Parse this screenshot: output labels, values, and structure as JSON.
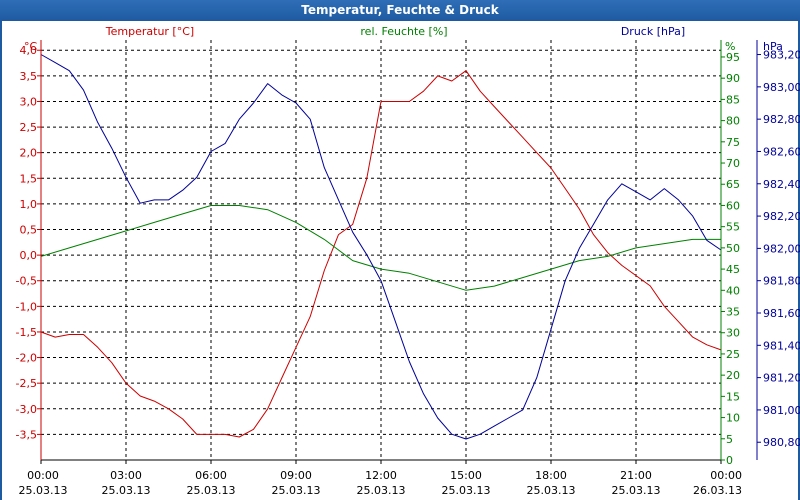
{
  "window": {
    "title": "Temperatur, Feuchte & Druck"
  },
  "colors": {
    "titlebar": "#1d5aa0",
    "temperature": "#cc0000",
    "humidity": "#008000",
    "pressure": "#000099"
  },
  "chart_data": {
    "type": "line",
    "title": "Temperatur, Feuchte & Druck",
    "grid": true,
    "x_axis": {
      "range": [
        "25.03.13 00:00",
        "26.03.13 00:00"
      ],
      "ticks": [
        {
          "h": 0,
          "time": "00:00",
          "date": "25.03.13"
        },
        {
          "h": 3,
          "time": "03:00",
          "date": "25.03.13"
        },
        {
          "h": 6,
          "time": "06:00",
          "date": "25.03.13"
        },
        {
          "h": 9,
          "time": "09:00",
          "date": "25.03.13"
        },
        {
          "h": 12,
          "time": "12:00",
          "date": "25.03.13"
        },
        {
          "h": 15,
          "time": "15:00",
          "date": "25.03.13"
        },
        {
          "h": 18,
          "time": "18:00",
          "date": "25.03.13"
        },
        {
          "h": 21,
          "time": "21:00",
          "date": "25.03.13"
        },
        {
          "h": 24,
          "time": "00:00",
          "date": "26.03.13"
        }
      ]
    },
    "axes": {
      "temperature": {
        "label": "Temperatur [°C]",
        "unit": "°C",
        "range": [
          -4.0,
          4.2
        ],
        "ticks": [
          "4,0",
          "3,5",
          "3,0",
          "2,5",
          "2,0",
          "1,5",
          "1,0",
          "0,5",
          "0,0",
          "-0,5",
          "-1,0",
          "-1,5",
          "-2,0",
          "-2,5",
          "-3,0",
          "-3,5"
        ],
        "tick_values": [
          4.0,
          3.5,
          3.0,
          2.5,
          2.0,
          1.5,
          1.0,
          0.5,
          0.0,
          -0.5,
          -1.0,
          -1.5,
          -2.0,
          -2.5,
          -3.0,
          -3.5
        ]
      },
      "humidity": {
        "label": "rel. Feuchte [%]",
        "unit": "%",
        "range": [
          0,
          99
        ],
        "ticks": [
          "95",
          "90",
          "85",
          "80",
          "75",
          "70",
          "65",
          "60",
          "55",
          "50",
          "45",
          "40",
          "35",
          "30",
          "25",
          "20",
          "15",
          "10",
          "5",
          "0"
        ],
        "tick_values": [
          95,
          90,
          85,
          80,
          75,
          70,
          65,
          60,
          55,
          50,
          45,
          40,
          35,
          30,
          25,
          20,
          15,
          10,
          5,
          0
        ]
      },
      "pressure": {
        "label": "Druck [hPa]",
        "unit": "hPa",
        "range": [
          980.69,
          983.29
        ],
        "ticks": [
          "983,20",
          "983,00",
          "982,80",
          "982,60",
          "982,40",
          "982,20",
          "982,00",
          "981,80",
          "981,60",
          "981,40",
          "981,20",
          "981,00",
          "980,80"
        ],
        "tick_values": [
          983.2,
          983.0,
          982.8,
          982.6,
          982.4,
          982.2,
          982.0,
          981.8,
          981.6,
          981.4,
          981.2,
          981.0,
          980.8
        ]
      }
    },
    "series": [
      {
        "name": "Temperatur [°C]",
        "axis": "temperature",
        "x": [
          0,
          0.5,
          1,
          1.5,
          2,
          2.5,
          3,
          3.5,
          4,
          4.5,
          5,
          5.5,
          6,
          6.5,
          7,
          7.5,
          8,
          8.5,
          9,
          9.5,
          10,
          10.5,
          11,
          11.5,
          12,
          12.5,
          13,
          13.5,
          14,
          14.5,
          15,
          15.5,
          16,
          16.5,
          17,
          17.5,
          18,
          18.5,
          19,
          19.5,
          20,
          20.5,
          21,
          21.5,
          22,
          22.5,
          23,
          23.5,
          24
        ],
        "values": [
          -1.5,
          -1.6,
          -1.55,
          -1.55,
          -1.8,
          -2.1,
          -2.5,
          -2.75,
          -2.85,
          -3.0,
          -3.2,
          -3.5,
          -3.5,
          -3.5,
          -3.55,
          -3.4,
          -3.0,
          -2.4,
          -1.8,
          -1.2,
          -0.3,
          0.4,
          0.6,
          1.5,
          3.0,
          3.0,
          3.0,
          3.2,
          3.5,
          3.4,
          3.6,
          3.2,
          2.9,
          2.6,
          2.3,
          2.0,
          1.7,
          1.3,
          0.9,
          0.4,
          0.05,
          -0.2,
          -0.4,
          -0.6,
          -1.0,
          -1.3,
          -1.6,
          -1.75,
          -1.85
        ]
      },
      {
        "name": "rel. Feuchte [%]",
        "axis": "humidity",
        "x": [
          0,
          1,
          2,
          3,
          4,
          5,
          6,
          7,
          8,
          9,
          10,
          11,
          12,
          13,
          14,
          15,
          16,
          17,
          18,
          19,
          20,
          21,
          22,
          23,
          24
        ],
        "values": [
          48,
          50,
          52,
          54,
          56,
          58,
          60,
          60,
          59,
          56,
          52,
          47,
          45,
          44,
          42,
          40,
          41,
          43,
          45,
          47,
          48,
          50,
          51,
          52,
          52
        ]
      },
      {
        "name": "Druck [hPa]",
        "axis": "pressure",
        "x": [
          0,
          0.5,
          1,
          1.5,
          2,
          2.5,
          3,
          3.5,
          4,
          4.5,
          5,
          5.5,
          6,
          6.5,
          7,
          7.5,
          8,
          8.5,
          9,
          9.5,
          10,
          10.5,
          11,
          11.5,
          12,
          12.5,
          13,
          13.5,
          14,
          14.5,
          15,
          15.5,
          16,
          16.5,
          17,
          17.5,
          18,
          18.5,
          19,
          19.5,
          20,
          20.5,
          21,
          21.5,
          22,
          22.5,
          23,
          23.5,
          24
        ],
        "values": [
          983.2,
          983.15,
          983.1,
          982.98,
          982.78,
          982.62,
          982.44,
          982.28,
          982.3,
          982.3,
          982.36,
          982.44,
          982.6,
          982.65,
          982.8,
          982.9,
          983.02,
          982.95,
          982.9,
          982.8,
          982.5,
          982.3,
          982.1,
          981.96,
          981.8,
          981.55,
          981.3,
          981.1,
          980.95,
          980.85,
          980.82,
          980.85,
          980.9,
          980.95,
          981.0,
          981.2,
          981.5,
          981.8,
          982.0,
          982.15,
          982.3,
          982.4,
          982.35,
          982.3,
          982.37,
          982.3,
          982.2,
          982.05,
          981.99
        ]
      }
    ]
  }
}
